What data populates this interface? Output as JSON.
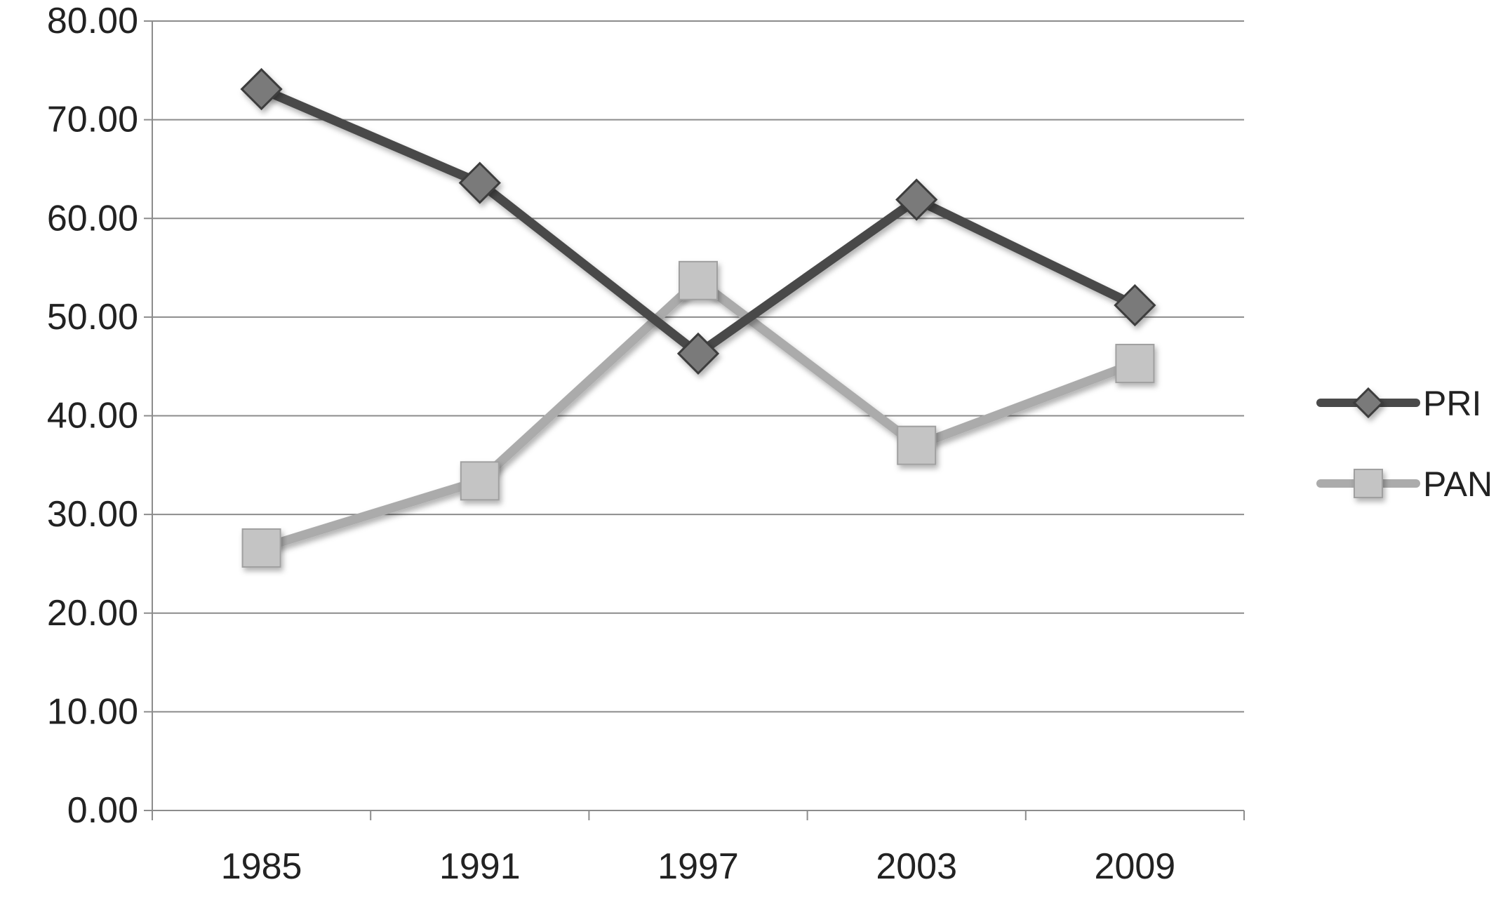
{
  "chart_data": {
    "type": "line",
    "title": "",
    "xlabel": "",
    "ylabel": "",
    "categories": [
      "1985",
      "1991",
      "1997",
      "2003",
      "2009"
    ],
    "ylim": [
      0,
      80
    ],
    "yticks": [
      "0.00",
      "10.00",
      "20.00",
      "30.00",
      "40.00",
      "50.00",
      "60.00",
      "70.00",
      "80.00"
    ],
    "grid": true,
    "legend_position": "right",
    "series": [
      {
        "name": "PRI",
        "values": [
          73.1,
          63.6,
          46.3,
          61.9,
          51.2
        ],
        "color": "#4a4a4a",
        "marker": "diamond",
        "marker_color": "#7a7a7a"
      },
      {
        "name": "PAN",
        "values": [
          26.6,
          33.4,
          53.7,
          37.0,
          45.3
        ],
        "color": "#ababab",
        "marker": "square",
        "marker_color": "#c4c4c4"
      }
    ]
  }
}
